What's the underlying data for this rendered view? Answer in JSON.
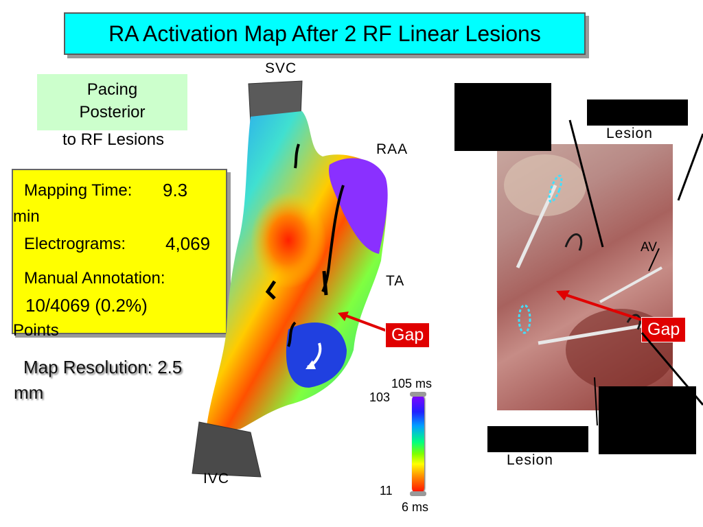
{
  "slide": {
    "title": "RA Activation Map After 2 RF Linear Lesions",
    "pacing": {
      "line1": "Pacing",
      "line2": "Posterior",
      "line3": "to RF Lesions"
    },
    "stats": {
      "mapping_time_label": "Mapping Time:",
      "mapping_time_value": "9.3",
      "mapping_time_unit": "min",
      "electrograms_label": "Electrograms:",
      "electrograms_value": "4,069",
      "annotation_label": "Manual Annotation:",
      "annotation_value": "10/4069 (0.2%)",
      "annotation_unit": "Points"
    },
    "map_resolution": {
      "label": "Map Resolution:",
      "value": "2.5",
      "unit": "mm"
    },
    "anatomy": {
      "svc": "SVC",
      "raa": "RAA",
      "ta": "TA",
      "ivc": "IVC",
      "av": "AV"
    },
    "gap_left": "Gap",
    "gap_right": "Gap",
    "scale": {
      "top_time": "105 ms",
      "top_value": "103",
      "bottom_value": "11",
      "bottom_time": "6 ms"
    },
    "lesion_top": "Lesion",
    "lesion_bottom": "Lesion",
    "colors": {
      "title_bg": "#00ffff",
      "pacing_bg": "#ccffcc",
      "stats_bg": "#ffff00",
      "gap_bg": "#e00000"
    }
  }
}
